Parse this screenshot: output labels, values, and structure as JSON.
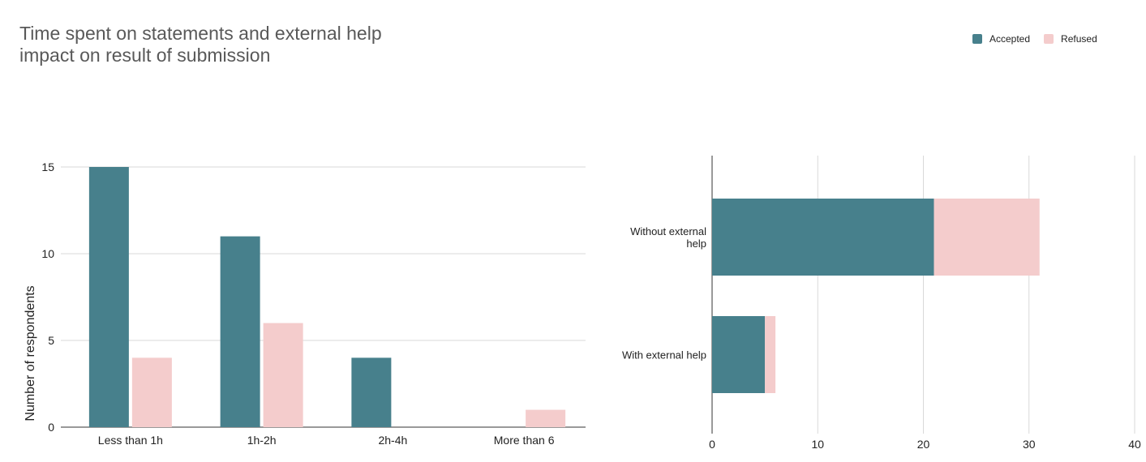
{
  "title_lines": [
    "Time spent on statements and external help",
    "impact on result of submission"
  ],
  "legend": [
    {
      "label": "Accepted",
      "color": "#47808c"
    },
    {
      "label": "Refused",
      "color": "#f4cccc"
    }
  ],
  "chart_data": [
    {
      "type": "bar",
      "categories": [
        "Less than 1h",
        "1h-2h",
        "2h-4h",
        "More than 6"
      ],
      "series": [
        {
          "name": "Accepted",
          "values": [
            15,
            11,
            4,
            0
          ]
        },
        {
          "name": "Refused",
          "values": [
            4,
            6,
            0,
            1
          ]
        }
      ],
      "ylabel": "Number of respondents",
      "yticks": [
        0,
        5,
        10,
        15
      ],
      "ylim": [
        0,
        16
      ],
      "grid": true
    },
    {
      "type": "bar",
      "orientation": "horizontal",
      "stacked": true,
      "categories": [
        "Without external help",
        "With external help"
      ],
      "category_label_lines": [
        [
          "Without external",
          "help"
        ],
        [
          "With external help"
        ]
      ],
      "series": [
        {
          "name": "Accepted",
          "values": [
            21,
            5
          ]
        },
        {
          "name": "Refused",
          "values": [
            10,
            1
          ]
        }
      ],
      "xticks": [
        0,
        10,
        20,
        30,
        40
      ],
      "xlim": [
        0,
        40
      ],
      "grid": true
    }
  ]
}
